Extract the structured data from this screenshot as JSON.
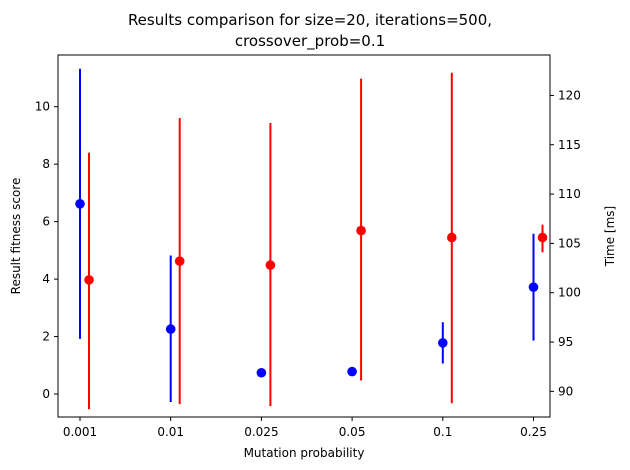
{
  "chart_data": {
    "type": "errorbar",
    "title_lines": [
      "Results comparison for size=20, iterations=500,",
      "crossover_prob=0.1"
    ],
    "xlabel": "Mutation probability",
    "ylabel_left": "Result fitness score",
    "ylabel_right": "Time [ms]",
    "categories": [
      "0.001",
      "0.01",
      "0.025",
      "0.05",
      "0.1",
      "0.25"
    ],
    "ylim_left": [
      -0.8,
      11.8
    ],
    "ylim_right": [
      87.4,
      124.1
    ],
    "yticks_left": [
      0,
      2,
      4,
      6,
      8,
      10
    ],
    "yticks_right": [
      90,
      95,
      100,
      105,
      110,
      115,
      120
    ],
    "series": [
      {
        "name": "fitness",
        "axis": "left",
        "color": "#0000ff",
        "values": [
          6.62,
          2.26,
          0.74,
          0.78,
          1.78,
          3.72
        ],
        "err_low": [
          1.92,
          -0.28,
          null,
          null,
          1.06,
          1.86
        ],
        "err_high": [
          11.32,
          4.82,
          null,
          null,
          2.5,
          5.58
        ]
      },
      {
        "name": "time",
        "axis": "right",
        "color": "#ff0000",
        "values": [
          101.3,
          103.2,
          102.8,
          106.3,
          105.6,
          105.6
        ],
        "err_low": [
          88.2,
          88.7,
          88.5,
          91.1,
          88.8,
          104.1
        ],
        "err_high": [
          114.2,
          117.7,
          117.2,
          121.7,
          122.3,
          106.9
        ]
      }
    ]
  }
}
